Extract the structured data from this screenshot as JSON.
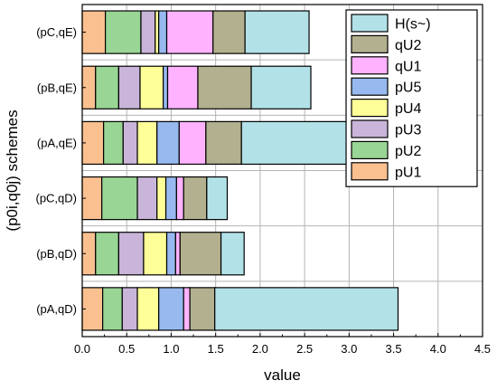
{
  "chart_data": {
    "type": "bar",
    "orientation": "horizontal",
    "stacked": true,
    "xlabel": "value",
    "ylabel": "(p0i,q0j) schemes",
    "xlim": [
      0,
      4.5
    ],
    "xticks": [
      "0.0",
      "0.5",
      "1.0",
      "1.5",
      "2.0",
      "2.5",
      "3.0",
      "3.5",
      "4.0",
      "4.5"
    ],
    "xtick_values": [
      0,
      0.5,
      1.0,
      1.5,
      2.0,
      2.5,
      3.0,
      3.5,
      4.0,
      4.5
    ],
    "grid": true,
    "legend_position": "top-right",
    "categories": [
      "(pA,qD)",
      "(pB,qD)",
      "(pC,qD)",
      "(pA,qE)",
      "(pB,qE)",
      "(pC,qE)"
    ],
    "series": [
      {
        "name": "pU1",
        "color": "#fac090",
        "values": [
          0.23,
          0.15,
          0.22,
          0.24,
          0.15,
          0.26
        ]
      },
      {
        "name": "pU2",
        "color": "#99d595",
        "values": [
          0.22,
          0.26,
          0.4,
          0.22,
          0.26,
          0.4
        ]
      },
      {
        "name": "pU3",
        "color": "#c9b5d9",
        "values": [
          0.17,
          0.28,
          0.22,
          0.16,
          0.24,
          0.16
        ]
      },
      {
        "name": "pU4",
        "color": "#ffff99",
        "values": [
          0.24,
          0.26,
          0.1,
          0.22,
          0.26,
          0.04
        ]
      },
      {
        "name": "pU5",
        "color": "#97b9ef",
        "values": [
          0.28,
          0.1,
          0.12,
          0.25,
          0.05,
          0.09
        ]
      },
      {
        "name": "qU1",
        "color": "#ffb3ff",
        "values": [
          0.07,
          0.05,
          0.08,
          0.3,
          0.34,
          0.52
        ]
      },
      {
        "name": "qU2",
        "color": "#b2b08e",
        "values": [
          0.28,
          0.46,
          0.26,
          0.4,
          0.6,
          0.36
        ]
      },
      {
        "name": "H(s~)",
        "color": "#b2e2e8",
        "values": [
          2.06,
          0.26,
          0.23,
          2.37,
          0.67,
          0.72
        ]
      }
    ],
    "legend_order": [
      "H(s~)",
      "qU2",
      "qU1",
      "pU5",
      "pU4",
      "pU3",
      "pU2",
      "pU1"
    ]
  }
}
